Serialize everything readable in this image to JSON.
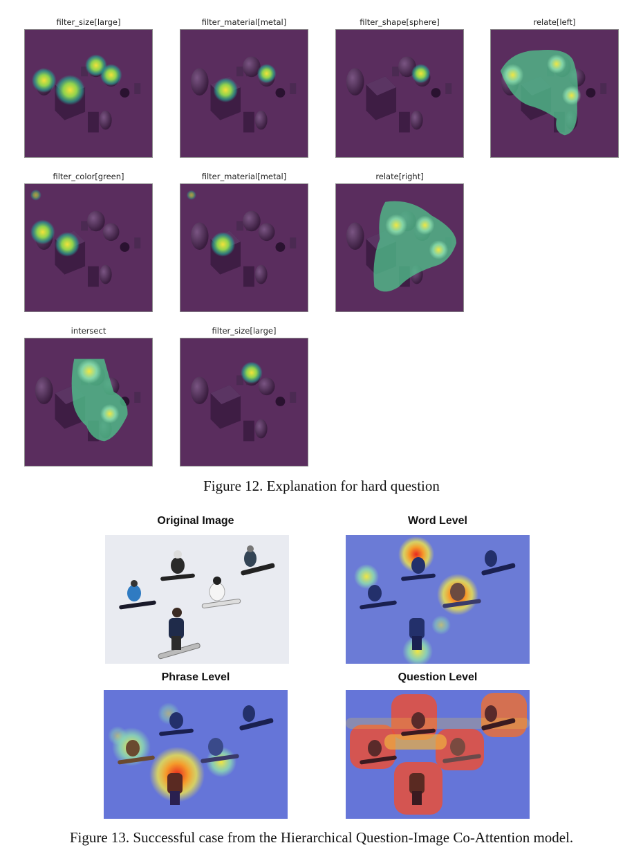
{
  "figure12": {
    "panels": [
      {
        "title": "filter_size[large]",
        "attention": "large-objects"
      },
      {
        "title": "filter_material[metal]",
        "attention": "metal-objects"
      },
      {
        "title": "filter_shape[sphere]",
        "attention": "sphere"
      },
      {
        "title": "relate[left]",
        "attention": "left-region"
      },
      {
        "title": "filter_color[green]",
        "attention": "green-objects"
      },
      {
        "title": "filter_material[metal]",
        "attention": "metal-cube"
      },
      {
        "title": "relate[right]",
        "attention": "right-region"
      },
      {
        "title": "intersect",
        "attention": "intersection"
      },
      {
        "title": "filter_size[large]",
        "attention": "single-sphere"
      }
    ],
    "caption": "Figure 12. Explanation for hard question"
  },
  "figure13": {
    "images": [
      {
        "title": "Original Image",
        "overlay": "none"
      },
      {
        "title": "Word Level",
        "overlay": "sparse-heatmap"
      },
      {
        "title": "Phrase Level",
        "overlay": "medium-heatmap"
      },
      {
        "title": "Question Level",
        "overlay": "dense-heatmap"
      }
    ],
    "caption": "Figure 13. Successful case from the Hierarchical Question-Image Co-Attention model."
  },
  "colors": {
    "attention_background": "#5a2d5e",
    "heat_yellow": "#e8e03a",
    "heat_green": "#55c27a",
    "snow": "#f1f1f4",
    "word_level_base": "#6b7bd6"
  }
}
